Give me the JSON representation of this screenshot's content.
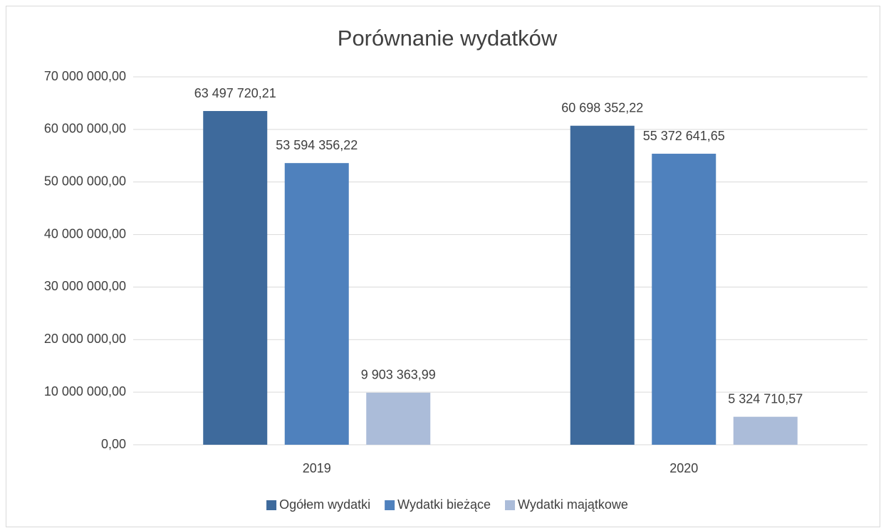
{
  "chart_data": {
    "type": "bar",
    "title": "Porównanie wydatków",
    "categories": [
      "2019",
      "2020"
    ],
    "series": [
      {
        "name": "Ogółem wydatki",
        "color": "#3e6a9c",
        "values": [
          63497720.21,
          60698352.22
        ],
        "value_labels": [
          "63 497 720,21",
          "60 698 352,22"
        ]
      },
      {
        "name": "Wydatki bieżące",
        "color": "#4f81bd",
        "values": [
          53594356.22,
          55372641.65
        ],
        "value_labels": [
          "53 594 356,22",
          "55 372 641,65"
        ]
      },
      {
        "name": "Wydatki majątkowe",
        "color": "#abbcd9",
        "values": [
          9903363.99,
          5324710.57
        ],
        "value_labels": [
          "9 903 363,99",
          "5 324 710,57"
        ]
      }
    ],
    "ylim": [
      0,
      70000000
    ],
    "yticks": [
      {
        "value": 0,
        "label": "0,00"
      },
      {
        "value": 10000000,
        "label": "10 000 000,00"
      },
      {
        "value": 20000000,
        "label": "20 000 000,00"
      },
      {
        "value": 30000000,
        "label": "30 000 000,00"
      },
      {
        "value": 40000000,
        "label": "40 000 000,00"
      },
      {
        "value": 50000000,
        "label": "50 000 000,00"
      },
      {
        "value": 60000000,
        "label": "60 000 000,00"
      },
      {
        "value": 70000000,
        "label": "70 000 000,00"
      }
    ],
    "grid": true,
    "legend": "bottom"
  }
}
